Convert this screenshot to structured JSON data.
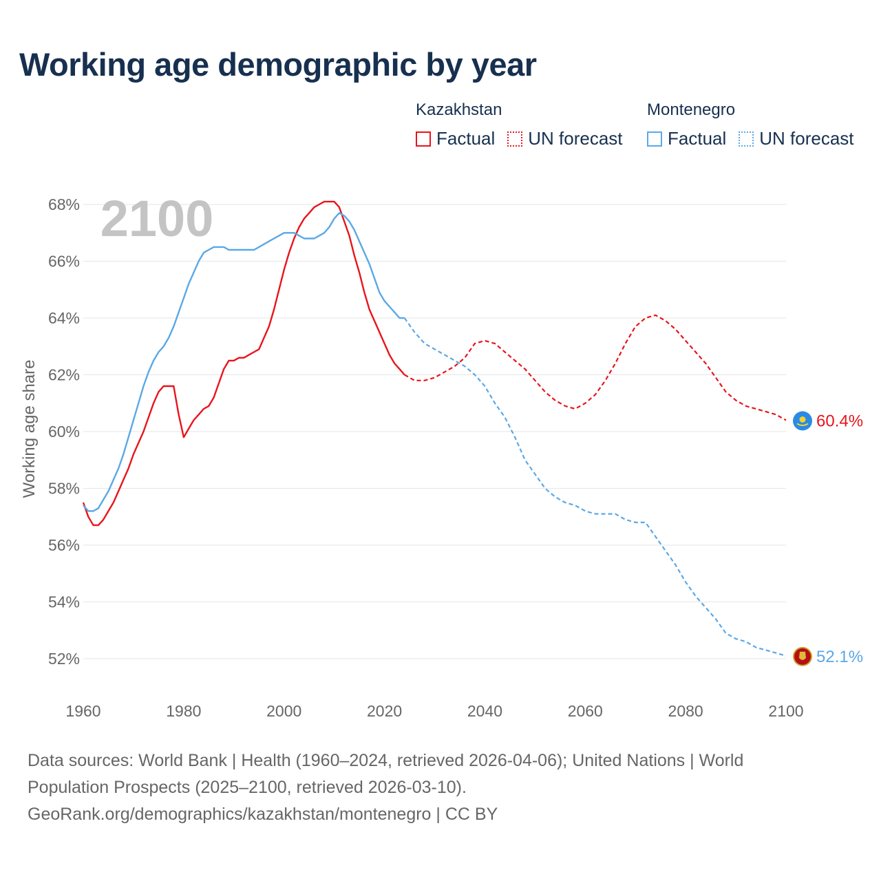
{
  "title": "Working age demographic by year",
  "legend": {
    "groups": [
      {
        "name": "Kazakhstan",
        "color": "#e8141b",
        "factual_label": "Factual",
        "forecast_label": "UN forecast"
      },
      {
        "name": "Montenegro",
        "color": "#5aa8e6",
        "factual_label": "Factual",
        "forecast_label": "UN forecast"
      }
    ]
  },
  "footer": {
    "line1": "Data sources: World Bank | Health (1960–2024, retrieved 2026-04-06); United Nations | World",
    "line2": "Population Prospects (2025–2100, retrieved 2026-03-10).",
    "line3": "GeoRank.org/demographics/kazakhstan/montenegro | CC BY"
  },
  "chart_data": {
    "type": "line",
    "title": "Working age demographic by year",
    "ylabel": "Working age share",
    "xlabel": "",
    "year_label": "2100",
    "xlim": [
      1960,
      2100
    ],
    "ylim": [
      51.2,
      68.6
    ],
    "x_ticks": [
      1960,
      1980,
      2000,
      2020,
      2040,
      2060,
      2080,
      2100
    ],
    "x_tick_labels": [
      "1960",
      "1980",
      "2000",
      "2020",
      "2040",
      "2060",
      "2080",
      "2100"
    ],
    "y_ticks": [
      52,
      54,
      56,
      58,
      60,
      62,
      64,
      66,
      68
    ],
    "y_tick_labels": [
      "52%",
      "54%",
      "56%",
      "58%",
      "60%",
      "62%",
      "64%",
      "66%",
      "68%"
    ],
    "grid": true,
    "factual_end_year": 2024,
    "series": [
      {
        "name": "Kazakhstan",
        "color": "#e8141b",
        "end_label": "60.4%",
        "points": [
          [
            1960,
            57.5
          ],
          [
            1961,
            57.0
          ],
          [
            1962,
            56.7
          ],
          [
            1963,
            56.7
          ],
          [
            1964,
            56.9
          ],
          [
            1965,
            57.2
          ],
          [
            1966,
            57.5
          ],
          [
            1967,
            57.9
          ],
          [
            1968,
            58.3
          ],
          [
            1969,
            58.7
          ],
          [
            1970,
            59.2
          ],
          [
            1971,
            59.6
          ],
          [
            1972,
            60.0
          ],
          [
            1973,
            60.5
          ],
          [
            1974,
            61.0
          ],
          [
            1975,
            61.4
          ],
          [
            1976,
            61.6
          ],
          [
            1977,
            61.6
          ],
          [
            1978,
            61.6
          ],
          [
            1979,
            60.6
          ],
          [
            1980,
            59.8
          ],
          [
            1981,
            60.1
          ],
          [
            1982,
            60.4
          ],
          [
            1983,
            60.6
          ],
          [
            1984,
            60.8
          ],
          [
            1985,
            60.9
          ],
          [
            1986,
            61.2
          ],
          [
            1987,
            61.7
          ],
          [
            1988,
            62.2
          ],
          [
            1989,
            62.5
          ],
          [
            1990,
            62.5
          ],
          [
            1991,
            62.6
          ],
          [
            1992,
            62.6
          ],
          [
            1993,
            62.7
          ],
          [
            1994,
            62.8
          ],
          [
            1995,
            62.9
          ],
          [
            1996,
            63.3
          ],
          [
            1997,
            63.7
          ],
          [
            1998,
            64.3
          ],
          [
            1999,
            65.0
          ],
          [
            2000,
            65.7
          ],
          [
            2001,
            66.3
          ],
          [
            2002,
            66.8
          ],
          [
            2003,
            67.2
          ],
          [
            2004,
            67.5
          ],
          [
            2005,
            67.7
          ],
          [
            2006,
            67.9
          ],
          [
            2007,
            68.0
          ],
          [
            2008,
            68.1
          ],
          [
            2009,
            68.1
          ],
          [
            2010,
            68.1
          ],
          [
            2011,
            67.9
          ],
          [
            2012,
            67.4
          ],
          [
            2013,
            66.9
          ],
          [
            2014,
            66.2
          ],
          [
            2015,
            65.6
          ],
          [
            2016,
            64.9
          ],
          [
            2017,
            64.3
          ],
          [
            2018,
            63.9
          ],
          [
            2019,
            63.5
          ],
          [
            2020,
            63.1
          ],
          [
            2021,
            62.7
          ],
          [
            2022,
            62.4
          ],
          [
            2023,
            62.2
          ],
          [
            2024,
            62.0
          ],
          [
            2026,
            61.8
          ],
          [
            2028,
            61.8
          ],
          [
            2030,
            61.9
          ],
          [
            2032,
            62.1
          ],
          [
            2034,
            62.3
          ],
          [
            2036,
            62.6
          ],
          [
            2038,
            63.1
          ],
          [
            2040,
            63.2
          ],
          [
            2042,
            63.1
          ],
          [
            2044,
            62.8
          ],
          [
            2046,
            62.5
          ],
          [
            2048,
            62.2
          ],
          [
            2050,
            61.8
          ],
          [
            2052,
            61.4
          ],
          [
            2054,
            61.1
          ],
          [
            2056,
            60.9
          ],
          [
            2058,
            60.8
          ],
          [
            2060,
            61.0
          ],
          [
            2062,
            61.3
          ],
          [
            2064,
            61.8
          ],
          [
            2066,
            62.4
          ],
          [
            2068,
            63.1
          ],
          [
            2070,
            63.7
          ],
          [
            2072,
            64.0
          ],
          [
            2074,
            64.1
          ],
          [
            2076,
            63.9
          ],
          [
            2078,
            63.6
          ],
          [
            2080,
            63.2
          ],
          [
            2082,
            62.8
          ],
          [
            2084,
            62.4
          ],
          [
            2086,
            61.9
          ],
          [
            2088,
            61.4
          ],
          [
            2090,
            61.1
          ],
          [
            2092,
            60.9
          ],
          [
            2094,
            60.8
          ],
          [
            2096,
            60.7
          ],
          [
            2098,
            60.6
          ],
          [
            2100,
            60.4
          ]
        ]
      },
      {
        "name": "Montenegro",
        "color": "#5aa8e6",
        "end_label": "52.1%",
        "points": [
          [
            1960,
            57.4
          ],
          [
            1961,
            57.2
          ],
          [
            1962,
            57.2
          ],
          [
            1963,
            57.3
          ],
          [
            1964,
            57.6
          ],
          [
            1965,
            57.9
          ],
          [
            1966,
            58.3
          ],
          [
            1967,
            58.7
          ],
          [
            1968,
            59.2
          ],
          [
            1969,
            59.8
          ],
          [
            1970,
            60.4
          ],
          [
            1971,
            61.0
          ],
          [
            1972,
            61.6
          ],
          [
            1973,
            62.1
          ],
          [
            1974,
            62.5
          ],
          [
            1975,
            62.8
          ],
          [
            1976,
            63.0
          ],
          [
            1977,
            63.3
          ],
          [
            1978,
            63.7
          ],
          [
            1979,
            64.2
          ],
          [
            1980,
            64.7
          ],
          [
            1981,
            65.2
          ],
          [
            1982,
            65.6
          ],
          [
            1983,
            66.0
          ],
          [
            1984,
            66.3
          ],
          [
            1985,
            66.4
          ],
          [
            1986,
            66.5
          ],
          [
            1987,
            66.5
          ],
          [
            1988,
            66.5
          ],
          [
            1989,
            66.4
          ],
          [
            1990,
            66.4
          ],
          [
            1991,
            66.4
          ],
          [
            1992,
            66.4
          ],
          [
            1993,
            66.4
          ],
          [
            1994,
            66.4
          ],
          [
            1995,
            66.5
          ],
          [
            1996,
            66.6
          ],
          [
            1997,
            66.7
          ],
          [
            1998,
            66.8
          ],
          [
            1999,
            66.9
          ],
          [
            2000,
            67.0
          ],
          [
            2001,
            67.0
          ],
          [
            2002,
            67.0
          ],
          [
            2003,
            66.9
          ],
          [
            2004,
            66.8
          ],
          [
            2005,
            66.8
          ],
          [
            2006,
            66.8
          ],
          [
            2007,
            66.9
          ],
          [
            2008,
            67.0
          ],
          [
            2009,
            67.2
          ],
          [
            2010,
            67.5
          ],
          [
            2011,
            67.7
          ],
          [
            2012,
            67.6
          ],
          [
            2013,
            67.4
          ],
          [
            2014,
            67.1
          ],
          [
            2015,
            66.7
          ],
          [
            2016,
            66.3
          ],
          [
            2017,
            65.9
          ],
          [
            2018,
            65.4
          ],
          [
            2019,
            64.9
          ],
          [
            2020,
            64.6
          ],
          [
            2021,
            64.4
          ],
          [
            2022,
            64.2
          ],
          [
            2023,
            64.0
          ],
          [
            2024,
            64.0
          ],
          [
            2026,
            63.5
          ],
          [
            2028,
            63.1
          ],
          [
            2030,
            62.9
          ],
          [
            2032,
            62.7
          ],
          [
            2034,
            62.5
          ],
          [
            2036,
            62.3
          ],
          [
            2038,
            62.0
          ],
          [
            2040,
            61.6
          ],
          [
            2042,
            61.0
          ],
          [
            2044,
            60.5
          ],
          [
            2046,
            59.8
          ],
          [
            2048,
            59.0
          ],
          [
            2050,
            58.5
          ],
          [
            2052,
            58.0
          ],
          [
            2054,
            57.7
          ],
          [
            2056,
            57.5
          ],
          [
            2058,
            57.4
          ],
          [
            2060,
            57.2
          ],
          [
            2062,
            57.1
          ],
          [
            2064,
            57.1
          ],
          [
            2066,
            57.1
          ],
          [
            2068,
            56.9
          ],
          [
            2070,
            56.8
          ],
          [
            2072,
            56.8
          ],
          [
            2074,
            56.3
          ],
          [
            2076,
            55.8
          ],
          [
            2078,
            55.3
          ],
          [
            2080,
            54.7
          ],
          [
            2082,
            54.2
          ],
          [
            2084,
            53.8
          ],
          [
            2086,
            53.4
          ],
          [
            2088,
            52.9
          ],
          [
            2090,
            52.7
          ],
          [
            2092,
            52.6
          ],
          [
            2094,
            52.4
          ],
          [
            2096,
            52.3
          ],
          [
            2098,
            52.2
          ],
          [
            2100,
            52.1
          ]
        ]
      }
    ]
  }
}
